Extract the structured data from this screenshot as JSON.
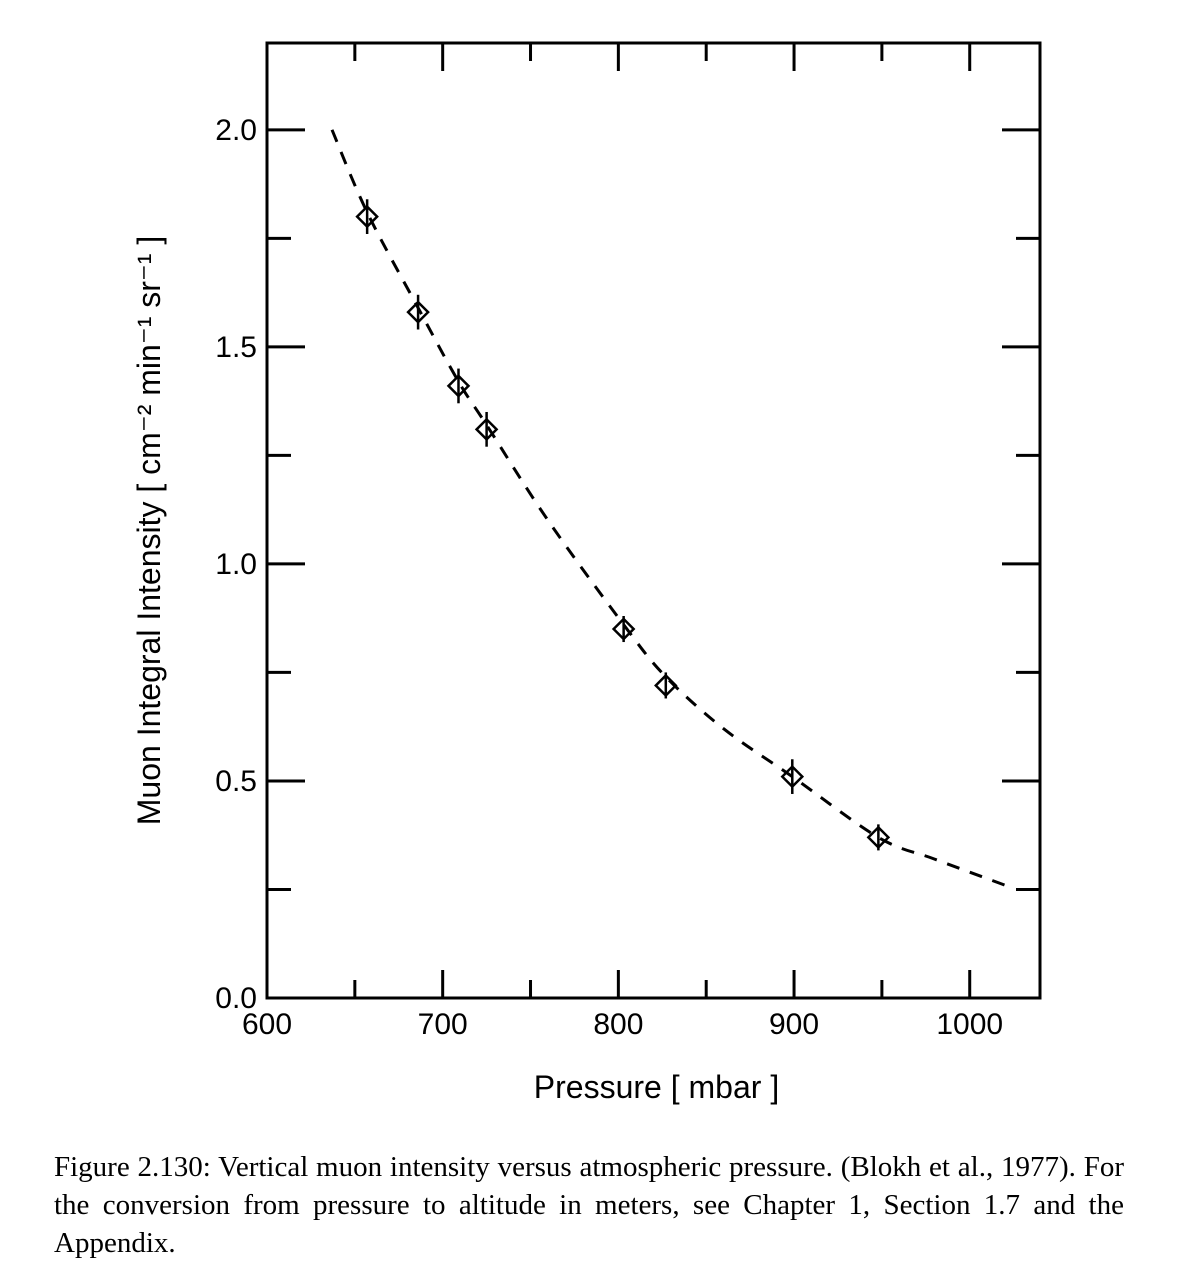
{
  "chart_data": {
    "type": "scatter",
    "xlabel": "Pressure  [ mbar ]",
    "ylabel": "Muon Integral Intensity  [ cm⁻² min⁻¹ sr⁻¹ ]",
    "xlim": [
      600,
      1040
    ],
    "ylim": [
      0,
      2.2
    ],
    "x_ticks": [
      "600",
      "700",
      "800",
      "900",
      "1000"
    ],
    "y_ticks": [
      "0.0",
      "0.5",
      "1.0",
      "1.5",
      "2.0"
    ],
    "grid": false,
    "series": [
      {
        "style": "diamond markers with error bars",
        "points": [
          {
            "x": 657,
            "y": 1.8,
            "err": 0.04
          },
          {
            "x": 686,
            "y": 1.58,
            "err": 0.04
          },
          {
            "x": 709,
            "y": 1.41,
            "err": 0.04
          },
          {
            "x": 725,
            "y": 1.31,
            "err": 0.04
          },
          {
            "x": 803,
            "y": 0.85,
            "err": 0.03
          },
          {
            "x": 827,
            "y": 0.72,
            "err": 0.03
          },
          {
            "x": 899,
            "y": 0.51,
            "err": 0.04
          },
          {
            "x": 948,
            "y": 0.37,
            "err": 0.03
          }
        ]
      },
      {
        "style": "dashed curve",
        "points": [
          {
            "x": 637,
            "y": 2.0
          },
          {
            "x": 657,
            "y": 1.81
          },
          {
            "x": 686,
            "y": 1.59
          },
          {
            "x": 709,
            "y": 1.42
          },
          {
            "x": 725,
            "y": 1.32
          },
          {
            "x": 760,
            "y": 1.1
          },
          {
            "x": 803,
            "y": 0.86
          },
          {
            "x": 827,
            "y": 0.74
          },
          {
            "x": 860,
            "y": 0.62
          },
          {
            "x": 899,
            "y": 0.51
          },
          {
            "x": 948,
            "y": 0.37
          },
          {
            "x": 980,
            "y": 0.32
          },
          {
            "x": 1020,
            "y": 0.26
          }
        ]
      }
    ]
  },
  "caption": "Figure 2.130: Vertical muon intensity versus atmospheric pressure. (Blokh et al., 1977). For the conversion from pressure to altitude in meters, see Chapter 1, Section 1.7 and the Appendix."
}
